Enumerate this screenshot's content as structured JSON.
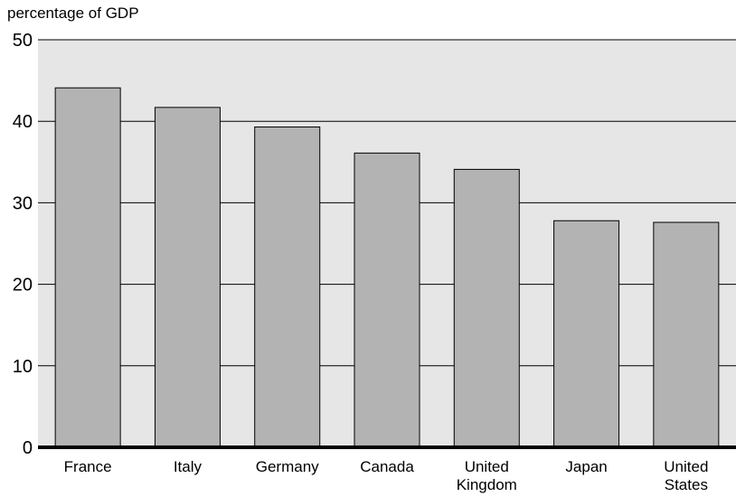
{
  "chart_data": {
    "type": "bar",
    "title": "",
    "ylabel": "percentage of GDP",
    "xlabel": "",
    "ylim": [
      0,
      50
    ],
    "yticks": [
      0,
      10,
      20,
      30,
      40,
      50
    ],
    "grid": true,
    "categories": [
      [
        "France"
      ],
      [
        "Italy"
      ],
      [
        "Germany"
      ],
      [
        "Canada"
      ],
      [
        "United",
        "Kingdom"
      ],
      [
        "Japan"
      ],
      [
        "United",
        "States"
      ]
    ],
    "values": [
      44.1,
      41.7,
      39.3,
      36.1,
      34.1,
      27.8,
      27.6
    ],
    "colors": {
      "bar": "#b3b3b3",
      "bar_edge": "#000000",
      "plot_background": "#e6e6e6",
      "grid": "#000000",
      "axis": "#000000"
    }
  }
}
